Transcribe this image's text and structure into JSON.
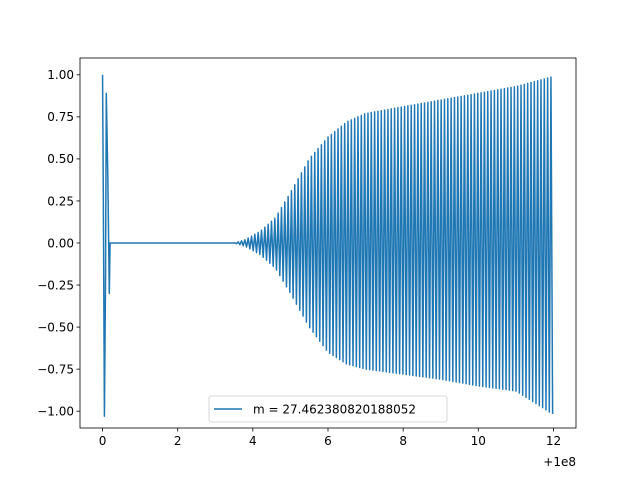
{
  "chart_data": {
    "type": "line",
    "title": "",
    "xlabel": "",
    "ylabel": "",
    "x_offset_label": "+1e8",
    "xlim": [
      -0.6,
      12.6
    ],
    "ylim": [
      -1.1,
      1.1
    ],
    "x_ticks": [
      0,
      2,
      4,
      6,
      8,
      10,
      12
    ],
    "x_tick_labels": [
      "0",
      "2",
      "4",
      "6",
      "8",
      "10",
      "12"
    ],
    "y_ticks": [
      -1.0,
      -0.75,
      -0.5,
      -0.25,
      0.0,
      0.25,
      0.5,
      0.75,
      1.0
    ],
    "y_tick_labels": [
      "−1.00",
      "−0.75",
      "−0.50",
      "−0.25",
      "0.00",
      "0.25",
      "0.50",
      "0.75",
      "1.00"
    ],
    "grid": false,
    "legend_position": "lower-center",
    "series": [
      {
        "name": "m = 27.462380820188052",
        "color": "#1f77b4",
        "initial_transient": {
          "x": [
            0.0,
            0.02,
            0.05,
            0.08,
            0.1,
            0.14,
            0.18,
            0.2,
            0.25
          ],
          "y": [
            1.0,
            0.3,
            -1.03,
            -0.2,
            0.89,
            0.4,
            -0.3,
            0.0,
            0.0
          ]
        },
        "flat_segment": {
          "x_start": 0.25,
          "x_end": 3.5,
          "y": 0.0
        },
        "oscillation": {
          "x_start": 3.5,
          "x_end": 12.0,
          "cycles": 96,
          "amplitude_x": [
            3.5,
            3.8,
            4.2,
            4.6,
            5.0,
            5.5,
            6.0,
            6.5,
            7.0,
            8.0,
            9.0,
            10.0,
            11.0,
            12.0
          ],
          "amplitude_upper": [
            0.0,
            0.02,
            0.07,
            0.15,
            0.3,
            0.5,
            0.63,
            0.72,
            0.77,
            0.81,
            0.85,
            0.89,
            0.93,
            0.99
          ],
          "amplitude_lower": [
            0.0,
            0.02,
            0.07,
            0.15,
            0.3,
            0.5,
            0.65,
            0.72,
            0.75,
            0.78,
            0.81,
            0.85,
            0.88,
            1.02
          ]
        }
      }
    ]
  }
}
